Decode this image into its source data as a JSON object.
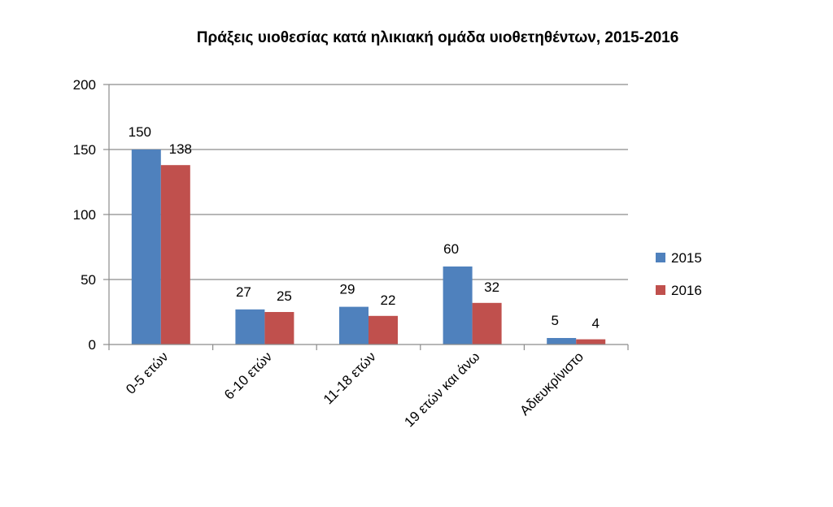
{
  "chart_data": {
    "type": "bar",
    "title": "Πράξεις υιοθεσίας κατά ηλικιακή ομάδα υιοθετηθέντων, 2015-2016",
    "categories": [
      "0-5 ετών",
      "6-10 ετών",
      "11-18 ετών",
      "19 ετών και άνω",
      "Αδιευκρίνιστο"
    ],
    "series": [
      {
        "name": "2015",
        "values": [
          150,
          27,
          29,
          60,
          5
        ],
        "color": "#4F81BD"
      },
      {
        "name": "2016",
        "values": [
          138,
          25,
          22,
          32,
          4
        ],
        "color": "#C0504D"
      }
    ],
    "ylim": [
      0,
      200
    ],
    "yticks": [
      0,
      50,
      100,
      150,
      200
    ],
    "grid": true,
    "legend_position": "right",
    "data_labels": true
  }
}
